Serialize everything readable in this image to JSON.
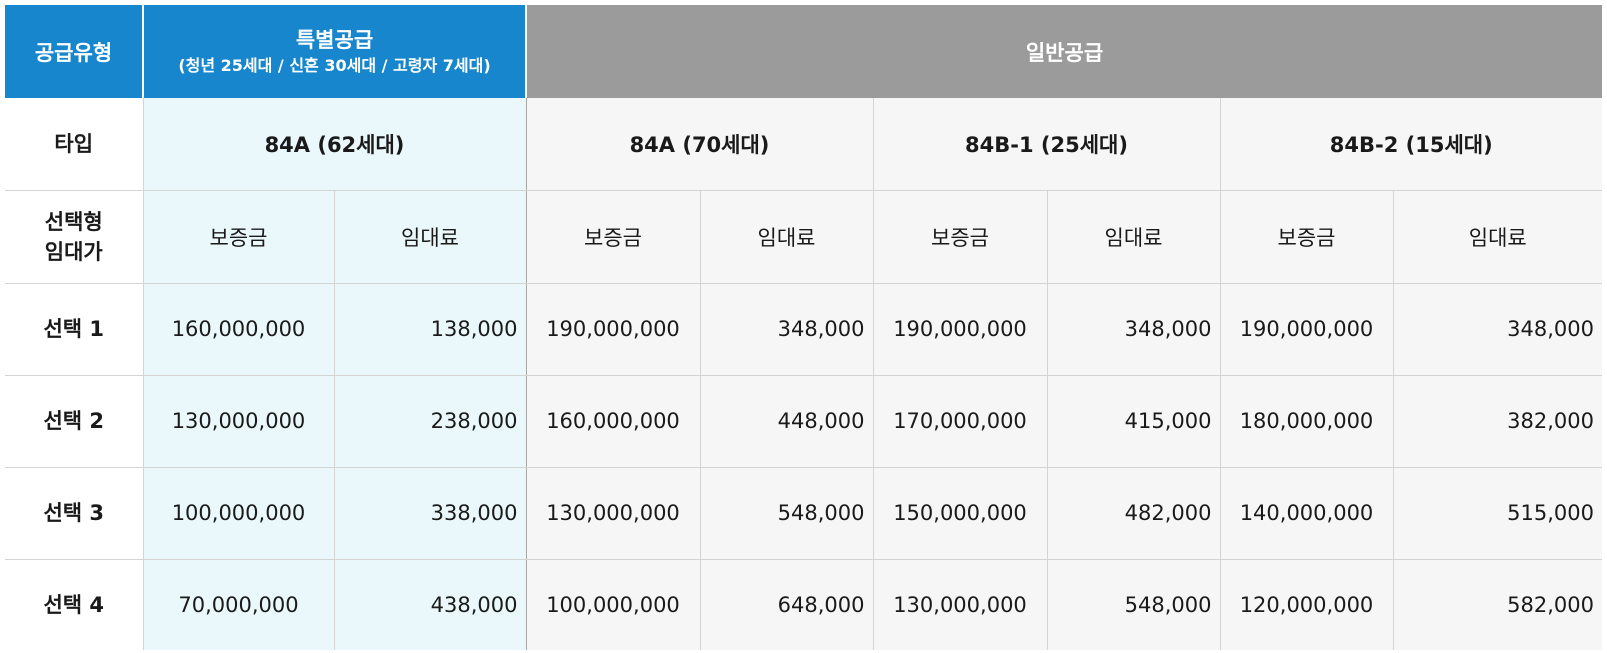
{
  "header": {
    "supply_type_label": "공급유형",
    "special_title": "특별공급",
    "special_subtitle": "(청년 25세대 / 신혼 30세대 / 고령자 7세대)",
    "general_title": "일반공급"
  },
  "type_row": {
    "label": "타입",
    "types": [
      "84A (62세대)",
      "84A (70세대)",
      "84B-1 (25세대)",
      "84B-2 (15세대)"
    ]
  },
  "selection_row": {
    "label_line1": "선택형",
    "label_line2": "임대가",
    "deposit_label": "보증금",
    "rent_label": "임대료"
  },
  "rows": [
    {
      "label": "선택 1",
      "values": [
        "160,000,000",
        "138,000",
        "190,000,000",
        "348,000",
        "190,000,000",
        "348,000",
        "190,000,000",
        "348,000"
      ]
    },
    {
      "label": "선택 2",
      "values": [
        "130,000,000",
        "238,000",
        "160,000,000",
        "448,000",
        "170,000,000",
        "415,000",
        "180,000,000",
        "382,000"
      ]
    },
    {
      "label": "선택 3",
      "values": [
        "100,000,000",
        "338,000",
        "130,000,000",
        "548,000",
        "150,000,000",
        "482,000",
        "140,000,000",
        "515,000"
      ]
    },
    {
      "label": "선택 4",
      "values": [
        "70,000,000",
        "438,000",
        "100,000,000",
        "648,000",
        "130,000,000",
        "548,000",
        "120,000,000",
        "582,000"
      ]
    }
  ],
  "colors": {
    "special_header": "#1786cc",
    "general_header": "#9b9b9b",
    "special_body": "#eaf8fc",
    "general_body": "#f6f6f6"
  }
}
